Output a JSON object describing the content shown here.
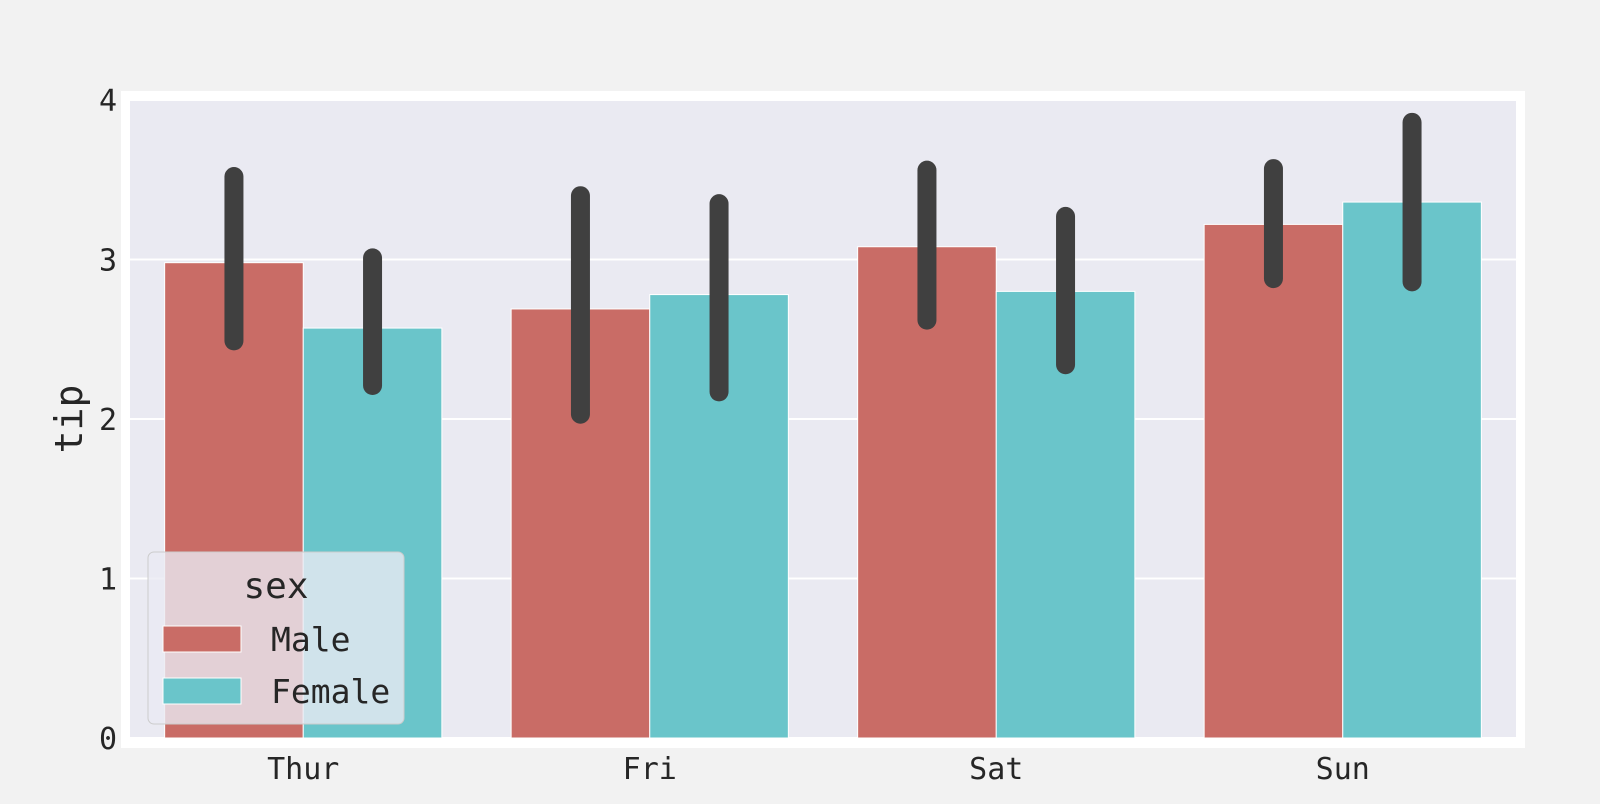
{
  "chart_data": {
    "type": "bar",
    "title": "",
    "xlabel": "",
    "ylabel": "tip",
    "categories": [
      "Thur",
      "Fri",
      "Sat",
      "Sun"
    ],
    "series": [
      {
        "name": "Male",
        "color": "#c96c66",
        "values": [
          2.98,
          2.69,
          3.08,
          3.22
        ],
        "ci": [
          [
            2.49,
            3.52
          ],
          [
            2.03,
            3.4
          ],
          [
            2.62,
            3.56
          ],
          [
            2.88,
            3.57
          ]
        ]
      },
      {
        "name": "Female",
        "color": "#6ac5ca",
        "values": [
          2.57,
          2.78,
          2.8,
          3.36
        ],
        "ci": [
          [
            2.21,
            3.01
          ],
          [
            2.17,
            3.35
          ],
          [
            2.34,
            3.27
          ],
          [
            2.86,
            3.86
          ]
        ]
      }
    ],
    "ylim": [
      0,
      4
    ],
    "yticks": [
      0,
      1,
      2,
      3,
      4
    ],
    "grid": true,
    "plot_background": "#eaeaf2",
    "errorbar_color": "#404040",
    "legend": {
      "title": "sex",
      "position": "lower-left"
    }
  }
}
